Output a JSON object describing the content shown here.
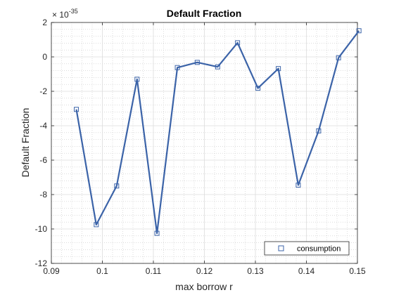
{
  "chart_data": {
    "type": "line",
    "title": "Default Fraction",
    "xlabel": "max borrow r",
    "ylabel": "Default Fraction",
    "y_exponent_base": "× 10",
    "y_exponent_power": "-35",
    "xlim": [
      0.09,
      0.15
    ],
    "ylim": [
      -12,
      2
    ],
    "xticks": [
      0.09,
      0.1,
      0.11,
      0.12,
      0.13,
      0.14,
      0.15
    ],
    "xtick_labels": [
      "0.09",
      "0.1",
      "0.11",
      "0.12",
      "0.13",
      "0.14",
      "0.15"
    ],
    "yticks": [
      2,
      0,
      -2,
      -4,
      -6,
      -8,
      -10,
      -12
    ],
    "ytick_labels": [
      "2",
      "0",
      "-2",
      "-4",
      "-6",
      "-8",
      "-10",
      "-12"
    ],
    "grid": true,
    "minor_grid": true,
    "legend_position": "bottom-right",
    "colors": {
      "series": "#3b63a8",
      "grid": "#e0e0e0",
      "axis": "#262626"
    },
    "series": [
      {
        "name": "consumption",
        "marker": "square",
        "x": [
          0.0949,
          0.0988,
          0.1028,
          0.1068,
          0.1107,
          0.1147,
          0.1186,
          0.1226,
          0.1265,
          0.1305,
          0.1345,
          0.1384,
          0.1424,
          0.1463,
          0.1503
        ],
        "y": [
          -3.05,
          -9.75,
          -7.5,
          -1.3,
          -10.25,
          -0.62,
          -0.32,
          -0.58,
          0.82,
          -1.82,
          -0.68,
          -7.45,
          -4.3,
          -0.05,
          1.52
        ]
      }
    ]
  }
}
